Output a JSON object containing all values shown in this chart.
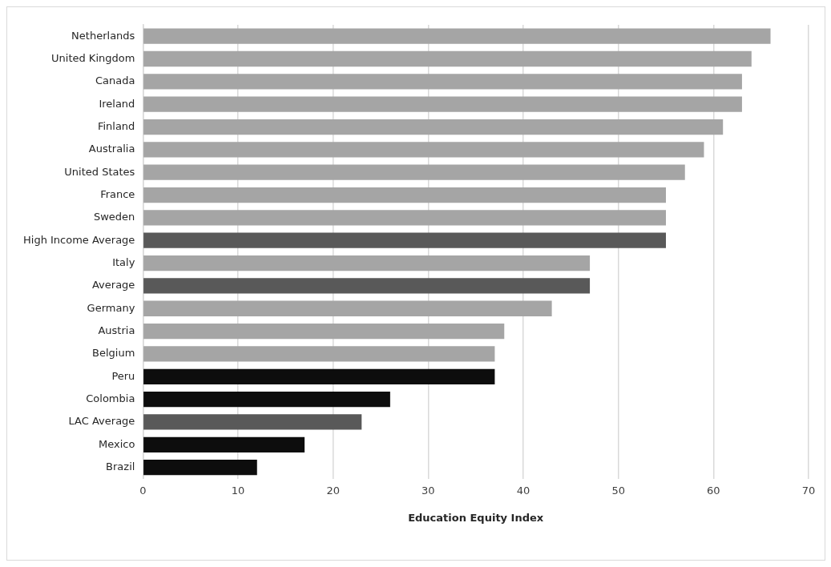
{
  "chart_data": {
    "type": "bar",
    "orientation": "horizontal",
    "xlabel": "Education Equity Index",
    "categories": [
      "Netherlands",
      "United Kingdom",
      "Canada",
      "Ireland",
      "Finland",
      "Australia",
      "United States",
      "France",
      "Sweden",
      "High Income Average",
      "Italy",
      "Average",
      "Germany",
      "Austria",
      "Belgium",
      "Peru",
      "Colombia",
      "LAC Average",
      "Mexico",
      "Brazil"
    ],
    "values": [
      66,
      64,
      63,
      63,
      61,
      59,
      57,
      55,
      55,
      55,
      47,
      47,
      43,
      38,
      37,
      37,
      26,
      23,
      17,
      12
    ],
    "colors": [
      "#a5a5a5",
      "#a5a5a5",
      "#a5a5a5",
      "#a5a5a5",
      "#a5a5a5",
      "#a5a5a5",
      "#a5a5a5",
      "#a5a5a5",
      "#a5a5a5",
      "#595959",
      "#a5a5a5",
      "#595959",
      "#a5a5a5",
      "#a5a5a5",
      "#a5a5a5",
      "#0d0d0d",
      "#0d0d0d",
      "#595959",
      "#0d0d0d",
      "#0d0d0d"
    ],
    "xlim": [
      0,
      70
    ],
    "xticks": [
      0,
      10,
      20,
      30,
      40,
      50,
      60,
      70
    ],
    "grid": "x",
    "legend": false
  }
}
